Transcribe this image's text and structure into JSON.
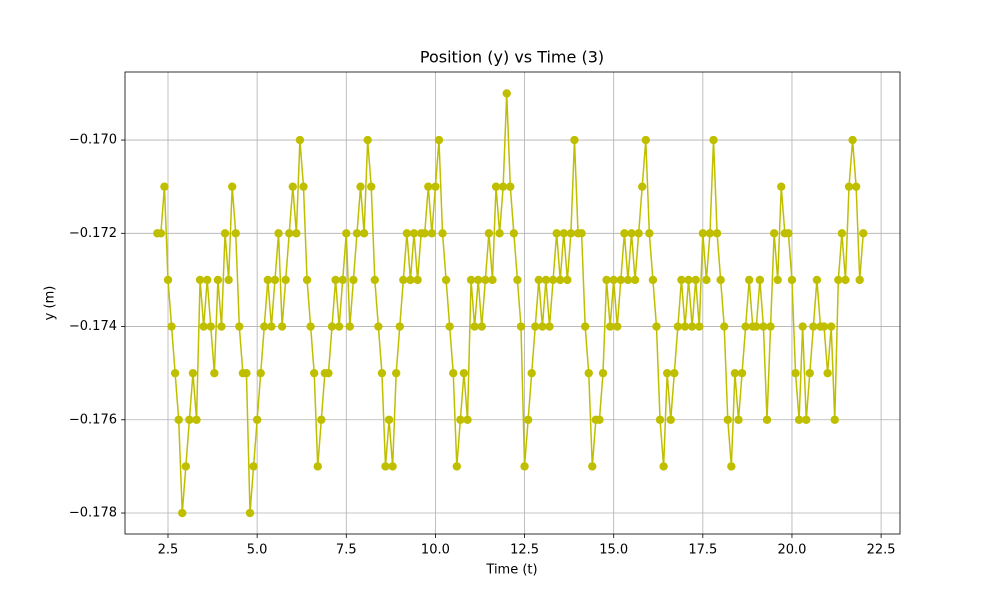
{
  "chart_data": {
    "type": "line",
    "title": "Position (y) vs Time (3)",
    "x_label": "Time (t)",
    "y_label": "y (m)",
    "grid": true,
    "marker": "circle",
    "xlim": [
      1.294,
      23.03
    ],
    "ylim": [
      -0.17845,
      -0.16854
    ],
    "xticks": [
      2.5,
      {
        "value": 5,
        "label": "5.0"
      },
      7.5,
      {
        "value": 10,
        "label": "10.0"
      },
      12.5,
      {
        "value": 15,
        "label": "15.0"
      },
      17.5,
      {
        "value": 20,
        "label": "20.0"
      },
      22.5
    ],
    "yticks": [
      {
        "value": -0.17,
        "label": "−0.170"
      },
      {
        "value": -0.172,
        "label": "−0.172"
      },
      {
        "value": -0.174,
        "label": "−0.174"
      },
      {
        "value": -0.176,
        "label": "−0.176"
      },
      {
        "value": -0.178,
        "label": "−0.178"
      }
    ],
    "x": [
      2.2,
      2.3,
      2.4,
      2.5,
      2.6,
      2.7,
      2.8,
      2.9,
      3.0,
      3.1,
      3.2,
      3.3,
      3.4,
      3.5,
      3.6,
      3.7,
      3.8,
      3.9,
      4.0,
      4.1,
      4.2,
      4.3,
      4.4,
      4.5,
      4.6,
      4.7,
      4.8,
      4.9,
      5.0,
      5.1,
      5.2,
      5.3,
      5.4,
      5.5,
      5.6,
      5.7,
      5.8,
      5.9,
      6.0,
      6.1,
      6.2,
      6.3,
      6.4,
      6.5,
      6.6,
      6.7,
      6.8,
      6.9,
      7.0,
      7.1,
      7.2,
      7.3,
      7.4,
      7.5,
      7.6,
      7.7,
      7.8,
      7.9,
      8.0,
      8.1,
      8.2,
      8.3,
      8.4,
      8.5,
      8.6,
      8.7,
      8.8,
      8.9,
      9.0,
      9.1,
      9.2,
      9.3,
      9.4,
      9.5,
      9.6,
      9.7,
      9.8,
      9.9,
      10.0,
      10.1,
      10.2,
      10.3,
      10.4,
      10.5,
      10.6,
      10.7,
      10.8,
      10.9,
      11.0,
      11.1,
      11.2,
      11.3,
      11.4,
      11.5,
      11.6,
      11.7,
      11.8,
      11.9,
      12.0,
      12.1,
      12.2,
      12.3,
      12.4,
      12.5,
      12.6,
      12.7,
      12.8,
      12.9,
      13.0,
      13.1,
      13.2,
      13.3,
      13.4,
      13.5,
      13.6,
      13.7,
      13.8,
      13.9,
      14.0,
      14.1,
      14.2,
      14.3,
      14.4,
      14.5,
      14.6,
      14.7,
      14.8,
      14.9,
      15.0,
      15.1,
      15.2,
      15.3,
      15.4,
      15.5,
      15.6,
      15.7,
      15.8,
      15.9,
      16.0,
      16.1,
      16.2,
      16.3,
      16.4,
      16.5,
      16.6,
      16.7,
      16.8,
      16.9,
      17.0,
      17.1,
      17.2,
      17.3,
      17.4,
      17.5,
      17.6,
      17.7,
      17.8,
      17.9,
      18.0,
      18.1,
      18.2,
      18.3,
      18.4,
      18.5,
      18.6,
      18.7,
      18.8,
      18.9,
      19.0,
      19.1,
      19.2,
      19.3,
      19.4,
      19.5,
      19.6,
      19.7,
      19.8,
      19.9,
      20.0,
      20.1,
      20.2,
      20.3,
      20.4,
      20.5,
      20.6,
      20.7,
      20.8,
      20.9,
      21.0,
      21.1,
      21.2,
      21.3,
      21.4,
      21.5,
      21.6,
      21.7,
      21.8,
      21.9,
      22.0
    ],
    "series": [
      {
        "color": "#bfbf00",
        "values": [
          -0.172,
          -0.172,
          -0.171,
          -0.173,
          -0.174,
          -0.175,
          -0.176,
          -0.178,
          -0.177,
          -0.176,
          -0.175,
          -0.176,
          -0.173,
          -0.174,
          -0.173,
          -0.174,
          -0.175,
          -0.173,
          -0.174,
          -0.172,
          -0.173,
          -0.171,
          -0.172,
          -0.174,
          -0.175,
          -0.175,
          -0.178,
          -0.177,
          -0.176,
          -0.175,
          -0.174,
          -0.173,
          -0.174,
          -0.173,
          -0.172,
          -0.174,
          -0.173,
          -0.172,
          -0.171,
          -0.172,
          -0.17,
          -0.171,
          -0.173,
          -0.174,
          -0.175,
          -0.177,
          -0.176,
          -0.175,
          -0.175,
          -0.174,
          -0.173,
          -0.174,
          -0.173,
          -0.172,
          -0.174,
          -0.173,
          -0.172,
          -0.171,
          -0.172,
          -0.17,
          -0.171,
          -0.173,
          -0.174,
          -0.175,
          -0.177,
          -0.176,
          -0.177,
          -0.175,
          -0.174,
          -0.173,
          -0.172,
          -0.173,
          -0.172,
          -0.173,
          -0.172,
          -0.172,
          -0.171,
          -0.172,
          -0.171,
          -0.17,
          -0.172,
          -0.173,
          -0.174,
          -0.175,
          -0.177,
          -0.176,
          -0.175,
          -0.176,
          -0.173,
          -0.174,
          -0.173,
          -0.174,
          -0.173,
          -0.172,
          -0.173,
          -0.171,
          -0.172,
          -0.171,
          -0.169,
          -0.171,
          -0.172,
          -0.173,
          -0.174,
          -0.177,
          -0.176,
          -0.175,
          -0.174,
          -0.173,
          -0.174,
          -0.173,
          -0.174,
          -0.173,
          -0.172,
          -0.173,
          -0.172,
          -0.173,
          -0.172,
          -0.17,
          -0.172,
          -0.172,
          -0.174,
          -0.175,
          -0.177,
          -0.176,
          -0.176,
          -0.175,
          -0.173,
          -0.174,
          -0.173,
          -0.174,
          -0.173,
          -0.172,
          -0.173,
          -0.172,
          -0.173,
          -0.172,
          -0.171,
          -0.17,
          -0.172,
          -0.173,
          -0.174,
          -0.176,
          -0.177,
          -0.175,
          -0.176,
          -0.175,
          -0.174,
          -0.173,
          -0.174,
          -0.173,
          -0.174,
          -0.173,
          -0.174,
          -0.172,
          -0.173,
          -0.172,
          -0.17,
          -0.172,
          -0.173,
          -0.174,
          -0.176,
          -0.177,
          -0.175,
          -0.176,
          -0.175,
          -0.174,
          -0.173,
          -0.174,
          -0.174,
          -0.173,
          -0.174,
          -0.176,
          -0.174,
          -0.172,
          -0.173,
          -0.171,
          -0.172,
          -0.172,
          -0.173,
          -0.175,
          -0.176,
          -0.174,
          -0.176,
          -0.175,
          -0.174,
          -0.173,
          -0.174,
          -0.174,
          -0.175,
          -0.174,
          -0.176,
          -0.173,
          -0.172,
          -0.173,
          -0.171,
          -0.17,
          -0.171,
          -0.173,
          -0.172
        ]
      }
    ]
  }
}
